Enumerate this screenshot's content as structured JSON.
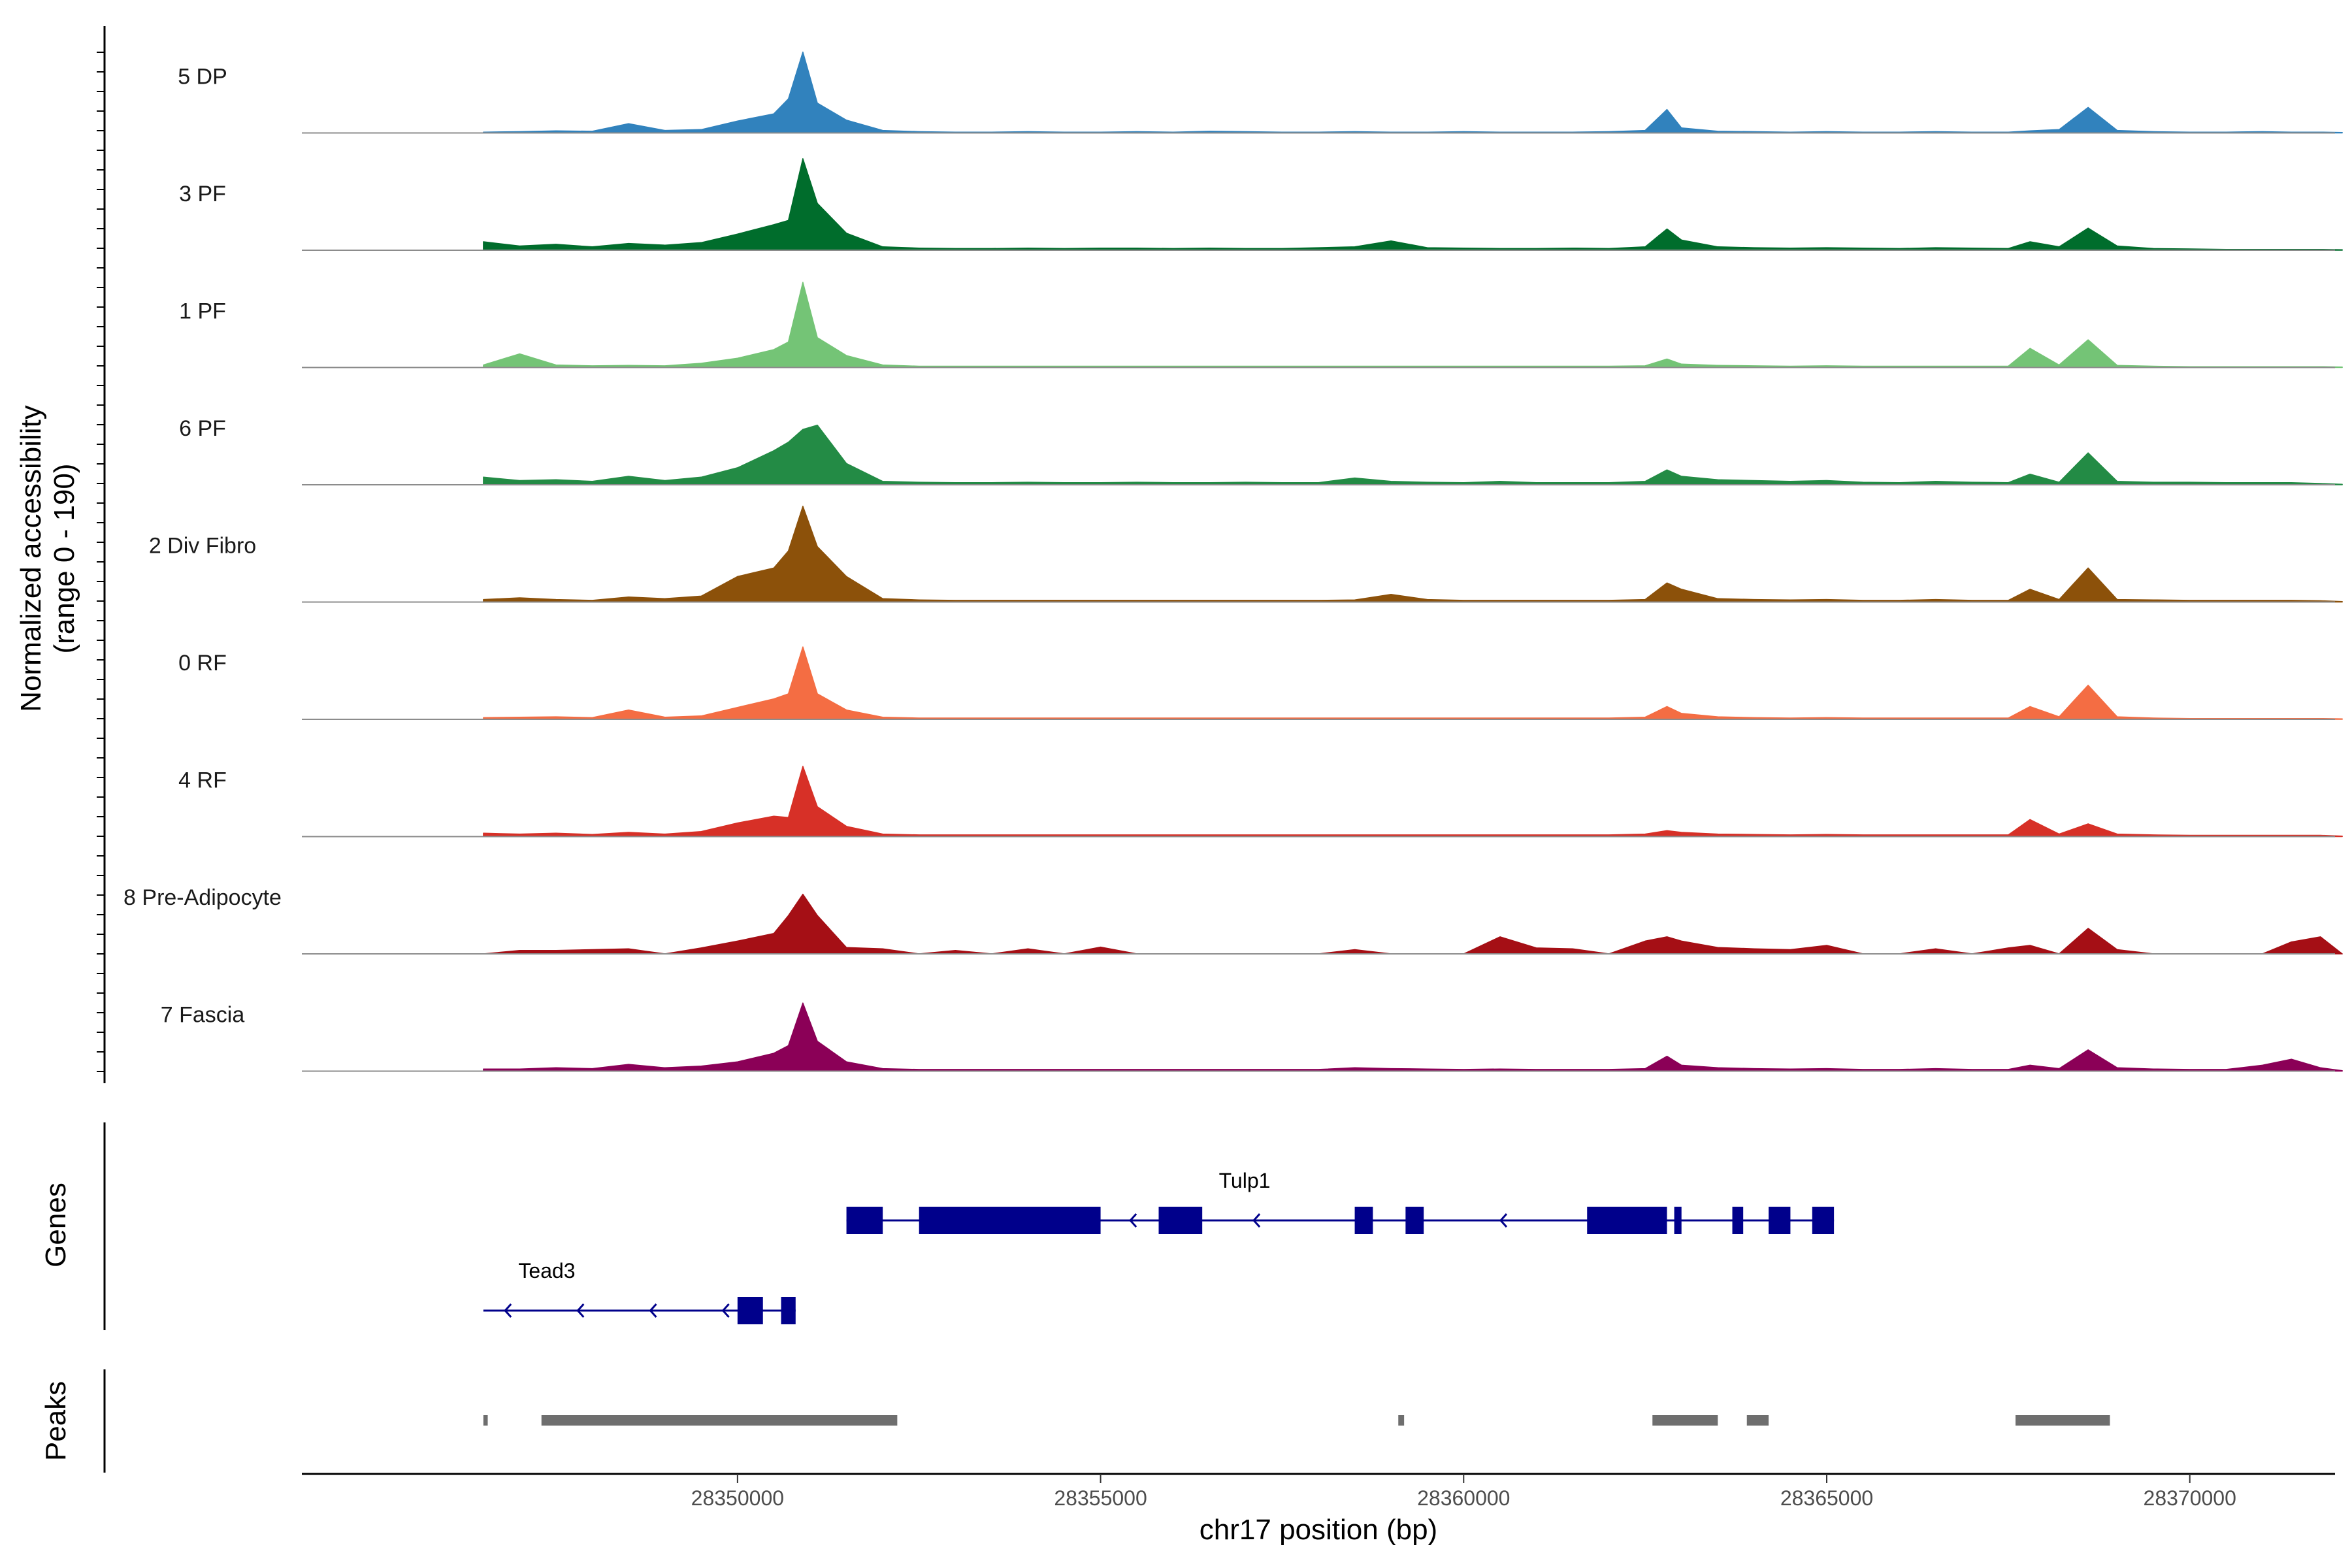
{
  "chart_data": {
    "type": "area",
    "title": "",
    "xlabel": "chr17 position (bp)",
    "ylabel": "Normalized accessibility",
    "ylabel_sub": "(range 0 - 190)",
    "y_range": [
      0,
      190
    ],
    "xlim": [
      28344000,
      28372000
    ],
    "x_ticks": [
      28350000,
      28355000,
      28360000,
      28365000,
      28370000
    ],
    "x_tick_labels": [
      "28350000",
      "28355000",
      "28360000",
      "28365000",
      "28370000"
    ],
    "x_positions_bp": [
      28346500,
      28347000,
      28347500,
      28348000,
      28348500,
      28349000,
      28349500,
      28350000,
      28350500,
      28350700,
      28350900,
      28351100,
      28351500,
      28352000,
      28352500,
      28353000,
      28353500,
      28354000,
      28354500,
      28355000,
      28355500,
      28356000,
      28356500,
      28357000,
      28357500,
      28358000,
      28358500,
      28359000,
      28359500,
      28360000,
      28360500,
      28361000,
      28361500,
      28362000,
      28362500,
      28362800,
      28363000,
      28363500,
      28364000,
      28364500,
      28365000,
      28365500,
      28366000,
      28366500,
      28367000,
      28367500,
      28367800,
      28368200,
      28368600,
      28369000,
      28369500,
      28370000,
      28370500,
      28371000,
      28371400,
      28371800,
      28372100
    ],
    "series": [
      {
        "name": "5 DP",
        "color": "#3182bd",
        "values": [
          2,
          3,
          5,
          4,
          22,
          6,
          8,
          28,
          45,
          80,
          190,
          70,
          30,
          6,
          3,
          2,
          2,
          3,
          2,
          2,
          3,
          2,
          4,
          3,
          2,
          2,
          3,
          2,
          2,
          3,
          2,
          2,
          2,
          3,
          6,
          55,
          12,
          4,
          3,
          2,
          3,
          2,
          2,
          3,
          2,
          2,
          5,
          8,
          60,
          6,
          3,
          2,
          2,
          3,
          2,
          2,
          1
        ]
      },
      {
        "name": "3 PF",
        "color": "#006d2c",
        "values": [
          20,
          10,
          14,
          8,
          16,
          12,
          18,
          38,
          60,
          70,
          215,
          110,
          40,
          8,
          5,
          4,
          4,
          5,
          4,
          5,
          5,
          4,
          5,
          4,
          4,
          6,
          8,
          22,
          6,
          5,
          4,
          4,
          5,
          4,
          8,
          50,
          24,
          8,
          6,
          5,
          6,
          5,
          4,
          6,
          5,
          4,
          20,
          8,
          52,
          10,
          4,
          3,
          2,
          2,
          2,
          2,
          1
        ]
      },
      {
        "name": "1 PF",
        "color": "#74c476",
        "values": [
          6,
          32,
          6,
          4,
          5,
          4,
          10,
          22,
          42,
          60,
          200,
          70,
          28,
          6,
          3,
          3,
          3,
          3,
          3,
          3,
          3,
          3,
          3,
          3,
          3,
          3,
          3,
          3,
          3,
          3,
          3,
          3,
          3,
          3,
          4,
          20,
          8,
          5,
          4,
          3,
          4,
          3,
          3,
          3,
          3,
          3,
          45,
          6,
          65,
          5,
          3,
          2,
          2,
          2,
          2,
          2,
          1
        ]
      },
      {
        "name": "6 PF",
        "color": "#238b45",
        "values": [
          18,
          10,
          12,
          8,
          20,
          10,
          18,
          40,
          80,
          100,
          130,
          140,
          50,
          8,
          6,
          5,
          5,
          6,
          5,
          5,
          6,
          5,
          5,
          6,
          5,
          5,
          16,
          8,
          6,
          5,
          8,
          5,
          5,
          5,
          8,
          35,
          20,
          12,
          10,
          8,
          10,
          6,
          5,
          8,
          6,
          5,
          25,
          6,
          75,
          8,
          6,
          6,
          5,
          5,
          5,
          3,
          1
        ]
      },
      {
        "name": "2 Div Fibro",
        "color": "#8c510a",
        "values": [
          6,
          10,
          6,
          4,
          12,
          8,
          14,
          60,
          80,
          120,
          225,
          130,
          60,
          8,
          5,
          4,
          4,
          4,
          4,
          4,
          4,
          4,
          4,
          4,
          4,
          4,
          5,
          18,
          6,
          4,
          4,
          4,
          4,
          4,
          6,
          45,
          30,
          8,
          6,
          5,
          6,
          4,
          4,
          6,
          4,
          4,
          30,
          6,
          80,
          6,
          5,
          4,
          4,
          4,
          4,
          3,
          1
        ]
      },
      {
        "name": "0 RF",
        "color": "#f46d43",
        "values": [
          4,
          5,
          6,
          4,
          22,
          5,
          8,
          28,
          48,
          60,
          170,
          60,
          22,
          5,
          3,
          3,
          3,
          3,
          3,
          3,
          3,
          3,
          3,
          3,
          3,
          3,
          3,
          3,
          3,
          3,
          3,
          3,
          3,
          3,
          5,
          30,
          14,
          6,
          4,
          3,
          4,
          3,
          3,
          3,
          3,
          3,
          30,
          6,
          80,
          6,
          3,
          2,
          2,
          2,
          2,
          2,
          1
        ]
      },
      {
        "name": "4 RF",
        "color": "#d73027",
        "values": [
          8,
          6,
          8,
          5,
          10,
          6,
          12,
          32,
          48,
          45,
          165,
          70,
          24,
          6,
          4,
          4,
          4,
          4,
          4,
          4,
          4,
          4,
          4,
          4,
          4,
          4,
          4,
          4,
          4,
          4,
          4,
          4,
          4,
          4,
          6,
          14,
          10,
          6,
          5,
          4,
          5,
          4,
          4,
          4,
          4,
          4,
          40,
          6,
          30,
          6,
          4,
          3,
          3,
          3,
          3,
          3,
          1
        ]
      },
      {
        "name": "8 Pre-Adipocyte",
        "color": "#a50f15",
        "values": [
          0,
          8,
          8,
          10,
          12,
          0,
          14,
          30,
          48,
          90,
          140,
          90,
          15,
          12,
          0,
          8,
          0,
          12,
          0,
          16,
          0,
          0,
          0,
          0,
          0,
          0,
          10,
          0,
          0,
          0,
          40,
          14,
          12,
          0,
          30,
          40,
          30,
          15,
          12,
          10,
          20,
          0,
          0,
          12,
          0,
          14,
          20,
          0,
          60,
          10,
          0,
          0,
          0,
          0,
          28,
          40,
          0
        ]
      },
      {
        "name": "7 Fascia",
        "color": "#8b0057",
        "values": [
          5,
          5,
          8,
          6,
          16,
          8,
          12,
          22,
          42,
          60,
          160,
          70,
          22,
          6,
          4,
          4,
          4,
          4,
          4,
          4,
          4,
          4,
          4,
          4,
          4,
          4,
          8,
          6,
          5,
          4,
          5,
          4,
          4,
          4,
          6,
          35,
          14,
          8,
          6,
          5,
          6,
          4,
          4,
          6,
          4,
          4,
          14,
          6,
          50,
          8,
          5,
          4,
          4,
          14,
          28,
          8,
          1
        ]
      }
    ],
    "genes_track_label": "Genes",
    "peaks_track_label": "Peaks",
    "genes": [
      {
        "name": "Tulp1",
        "strand": "-",
        "start": 28351500,
        "end": 28365100,
        "exons": [
          [
            28351500,
            28352000
          ],
          [
            28352500,
            28355000
          ],
          [
            28355800,
            28356400
          ],
          [
            28358500,
            28358750
          ],
          [
            28359200,
            28359450
          ],
          [
            28361700,
            28362800
          ],
          [
            28362900,
            28363000
          ],
          [
            28363700,
            28363850
          ],
          [
            28364200,
            28364500
          ],
          [
            28364800,
            28365100
          ]
        ]
      },
      {
        "name": "Tead3",
        "strand": "-",
        "start": 28346500,
        "end": 28350800,
        "exons": [
          [
            28350000,
            28350350
          ],
          [
            28350600,
            28350800
          ]
        ]
      }
    ],
    "peaks": [
      [
        28346500,
        28346560
      ],
      [
        28347300,
        28352200
      ],
      [
        28359100,
        28359180
      ],
      [
        28362600,
        28363500
      ],
      [
        28363900,
        28364200
      ],
      [
        28367600,
        28368900
      ]
    ]
  }
}
